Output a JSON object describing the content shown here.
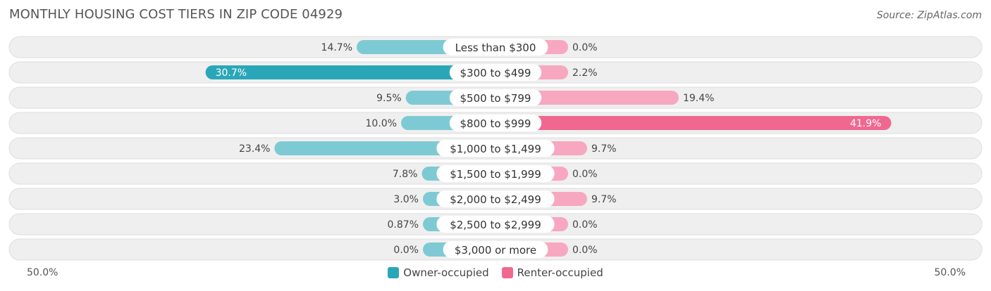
{
  "title": "MONTHLY HOUSING COST TIERS IN ZIP CODE 04929",
  "source": "Source: ZipAtlas.com",
  "colors": {
    "owner_dark": "#29a7b8",
    "owner_light": "#7ecad4",
    "renter_dark": "#f06890",
    "renter_light": "#f7a8c0",
    "row_bg": "#efefef",
    "row_border": "#dedede"
  },
  "axis": {
    "left_label": "50.0%",
    "right_label": "50.0%"
  },
  "legend": {
    "owner": "Owner-occupied",
    "renter": "Renter-occupied"
  },
  "chart_data": {
    "type": "bar",
    "orientation": "diverging-horizontal",
    "title": "MONTHLY HOUSING COST TIERS IN ZIP CODE 04929",
    "xlim": [
      -50,
      50
    ],
    "categories": [
      "Less than $300",
      "$300 to $499",
      "$500 to $799",
      "$800 to $999",
      "$1,000 to $1,499",
      "$1,500 to $1,999",
      "$2,000 to $2,499",
      "$2,500 to $2,999",
      "$3,000 or more"
    ],
    "series": [
      {
        "name": "Owner-occupied",
        "values": [
          14.7,
          30.7,
          9.5,
          10.0,
          23.4,
          7.8,
          3.0,
          0.87,
          0.0
        ],
        "labels": [
          "14.7%",
          "30.7%",
          "9.5%",
          "10.0%",
          "23.4%",
          "7.8%",
          "3.0%",
          "0.87%",
          "0.0%"
        ]
      },
      {
        "name": "Renter-occupied",
        "values": [
          0.0,
          2.2,
          19.4,
          41.9,
          9.7,
          0.0,
          9.7,
          0.0,
          0.0
        ],
        "labels": [
          "0.0%",
          "2.2%",
          "19.4%",
          "41.9%",
          "9.7%",
          "0.0%",
          "9.7%",
          "0.0%",
          "0.0%"
        ]
      }
    ],
    "legend_position": "bottom-center",
    "grid": false
  }
}
